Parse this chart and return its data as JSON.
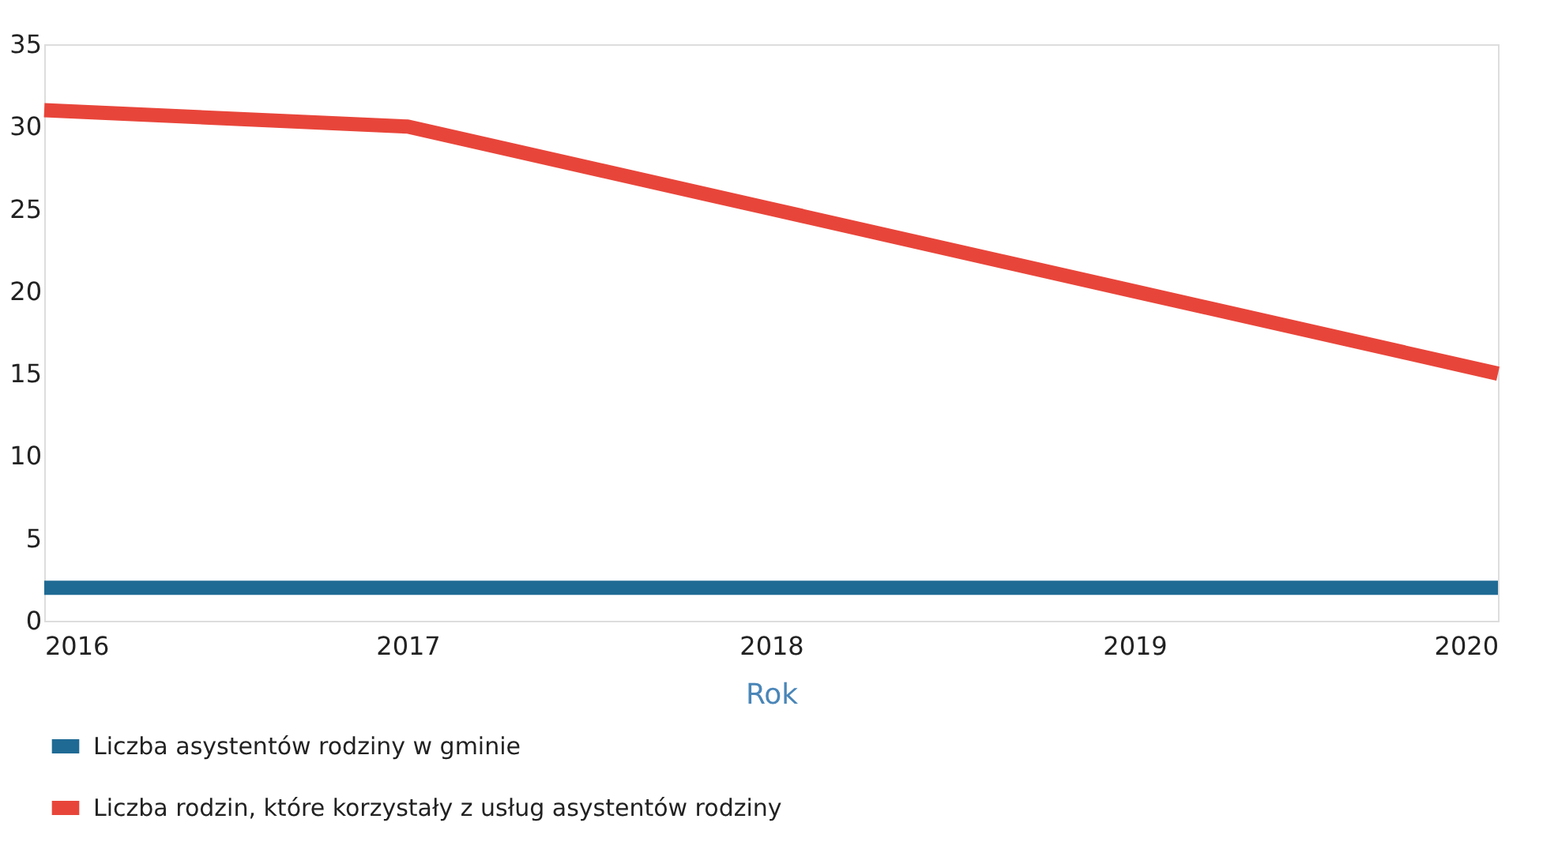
{
  "chart_data": {
    "type": "line",
    "xlabel": "Rok",
    "x": [
      2016,
      2017,
      2018,
      2019,
      2020
    ],
    "series": [
      {
        "name": "Liczba asystentów rodziny w gminie",
        "color": "#1f6a94",
        "values": [
          2,
          2,
          2,
          2,
          2
        ]
      },
      {
        "name": "Liczba rodzin, które korzystały z usług asystentów rodziny",
        "color": "#e8453a",
        "values": [
          31,
          30,
          25,
          20,
          15
        ]
      }
    ],
    "xlim": [
      2016,
      2020
    ],
    "xticks": [
      2016,
      2017,
      2018,
      2019,
      2020
    ],
    "ylim": [
      0,
      35
    ],
    "yticks": [
      0,
      5,
      10,
      15,
      20,
      25,
      30,
      35
    ],
    "grid": false,
    "legend": "bottom",
    "marker": "none",
    "line_style": "solid"
  }
}
